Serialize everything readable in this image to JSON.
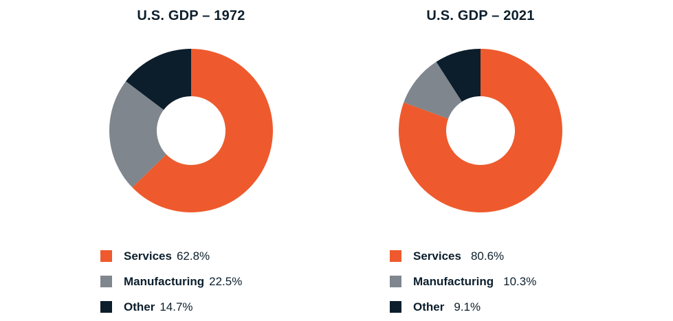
{
  "chart_data": [
    {
      "type": "pie",
      "title": "U.S. GDP – 1972",
      "categories": [
        "Services",
        "Manufacturing",
        "Other"
      ],
      "values": [
        62.8,
        22.5,
        14.7
      ],
      "value_labels": [
        "62.8%",
        "22.5%",
        "14.7%"
      ],
      "colors": [
        "#ee5a2d",
        "#7f868d",
        "#0c1e2c"
      ],
      "legend_position": "bottom"
    },
    {
      "type": "pie",
      "title": "U.S. GDP – 2021",
      "categories": [
        "Services",
        "Manufacturing",
        "Other"
      ],
      "values": [
        80.6,
        10.3,
        9.1
      ],
      "value_labels": [
        "80.6%",
        "10.3%",
        "9.1%"
      ],
      "colors": [
        "#ee5a2d",
        "#7f868d",
        "#0c1e2c"
      ],
      "legend_position": "bottom"
    }
  ]
}
